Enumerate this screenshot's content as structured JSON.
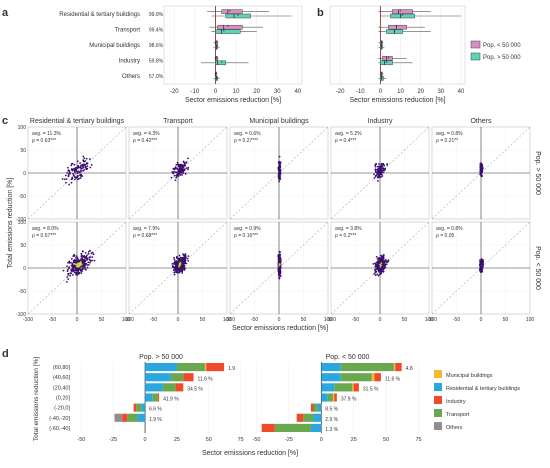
{
  "panel_letters": {
    "a": "a",
    "b": "b",
    "c": "c",
    "d": "d"
  },
  "colors": {
    "pop_lt": "#d58fc4",
    "pop_gt": "#5fd3b5",
    "sector_municipal": "#f6b82f",
    "sector_residential": "#2aa7df",
    "sector_industry": "#ef4b2a",
    "sector_transport": "#6aa84f",
    "sector_others": "#8f8f8f",
    "density_low": "#3b0f6f",
    "density_high": "#c9e021",
    "zero_line": "#8b1a1a"
  },
  "chart_data": [
    {
      "panel": "a",
      "type": "box",
      "categories": [
        "Residential & tertiary buildings",
        "Transport",
        "Municipal buildings",
        "Industry",
        "Others"
      ],
      "annotations": [
        "99.9%",
        "99.4%",
        "98.6%",
        "59.8%",
        "57.0%"
      ],
      "xlabel": "Sector emissions reduction [%]",
      "xlim": [
        -25,
        42
      ],
      "xticks": [
        -20,
        -10,
        0,
        10,
        20,
        30,
        40
      ],
      "series": [
        {
          "name": "Pop. < 50 000",
          "boxes": [
            {
              "wmin": -4,
              "q1": 3,
              "median": 6,
              "q3": 13,
              "wmax": 26,
              "mean": 7
            },
            {
              "wmin": -3,
              "q1": 1,
              "median": 4,
              "q3": 13,
              "wmax": 23,
              "mean": 6
            },
            {
              "wmin": -1,
              "q1": 0,
              "median": 0.2,
              "q3": 1,
              "wmax": 1.5,
              "mean": 0.5
            },
            {
              "wmin": -0.5,
              "q1": 0,
              "median": 0.2,
              "q3": 1,
              "wmax": 1.5,
              "mean": 0.5
            },
            {
              "wmin": -0.5,
              "q1": 0,
              "median": 0.1,
              "q3": 0.5,
              "wmax": 1,
              "mean": 0.3
            }
          ]
        },
        {
          "name": "Pop. > 50 000",
          "boxes": [
            {
              "wmin": -2,
              "q1": 5,
              "median": 9,
              "q3": 17,
              "wmax": 37,
              "mean": 11
            },
            {
              "wmin": -2,
              "q1": 0,
              "median": 3,
              "q3": 12,
              "wmax": 20,
              "mean": 4
            },
            {
              "wmin": -1,
              "q1": 0,
              "median": 0.4,
              "q3": 1,
              "wmax": 2,
              "mean": 0.6
            },
            {
              "wmin": -7,
              "q1": 0,
              "median": 1,
              "q3": 5,
              "wmax": 16,
              "mean": 3
            },
            {
              "wmin": -1,
              "q1": 0,
              "median": 0.4,
              "q3": 1,
              "wmax": 2,
              "mean": 0.8
            }
          ]
        }
      ]
    },
    {
      "panel": "b",
      "type": "box",
      "xlabel": "Sector emissions reduction [%]",
      "xlim": [
        -25,
        42
      ],
      "xticks": [
        -20,
        -10,
        0,
        10,
        20,
        30,
        40
      ],
      "legend": {
        "position": "right",
        "entries": [
          "Pop. < 50 000",
          "Pop. > 50 000"
        ]
      },
      "series": [
        {
          "name": "Pop. < 50 000",
          "boxes": [
            {
              "wmin": -1,
              "q1": 6,
              "median": 9,
              "q3": 16,
              "wmax": 25,
              "mean": 10
            },
            {
              "wmin": -1,
              "q1": 4,
              "median": 8,
              "q3": 13,
              "wmax": 22,
              "mean": 8
            },
            {
              "wmin": -1,
              "q1": 0,
              "median": 0.5,
              "q3": 1,
              "wmax": 1.5,
              "mean": 0.5
            },
            {
              "wmin": -1,
              "q1": 1,
              "median": 3,
              "q3": 6,
              "wmax": 13,
              "mean": 4
            },
            {
              "wmin": -0.5,
              "q1": 0,
              "median": 0.4,
              "q3": 1,
              "wmax": 1.5,
              "mean": 0.5
            }
          ]
        },
        {
          "name": "Pop. > 50 000",
          "boxes": [
            {
              "wmin": 0,
              "q1": 5,
              "median": 10,
              "q3": 17,
              "wmax": 40,
              "mean": 11
            },
            {
              "wmin": -1,
              "q1": 3,
              "median": 7,
              "q3": 11,
              "wmax": 25,
              "mean": 7
            },
            {
              "wmin": -1,
              "q1": 0,
              "median": 0.5,
              "q3": 1,
              "wmax": 2,
              "mean": 0.7
            },
            {
              "wmin": -1,
              "q1": 0,
              "median": 2,
              "q3": 6,
              "wmax": 16,
              "mean": 3
            },
            {
              "wmin": -1,
              "q1": 0,
              "median": 0.6,
              "q3": 1.5,
              "wmax": 3,
              "mean": 0.8
            }
          ]
        }
      ]
    },
    {
      "panel": "c",
      "type": "scatter",
      "columns": [
        "Residential & tertiary buildings",
        "Transport",
        "Municipal buildings",
        "Industry",
        "Others"
      ],
      "rows": [
        "Pop. > 50 000",
        "Pop. < 50 000"
      ],
      "xlabel": "Sector emissions reduction [%]",
      "ylabel": "Total emissions reduction [%]",
      "xlim": [
        -100,
        100
      ],
      "ylim": [
        -100,
        100
      ],
      "xticks": [
        -100,
        -50,
        0,
        50,
        100
      ],
      "yticks": [
        -100,
        -50,
        0,
        50,
        100
      ],
      "diagonal": "y = x (dashed)",
      "stats": [
        [
          {
            "avg": "avg. = 11.3%",
            "rho": "ρ = 0.63***"
          },
          {
            "avg": "avg. = 4.3%",
            "rho": "ρ = 0.42***"
          },
          {
            "avg": "avg. = 0.6%",
            "rho": "ρ = 0.27***"
          },
          {
            "avg": "avg. = 5.2%",
            "rho": "ρ = 0.4***"
          },
          {
            "avg": "avg. = 0.8%",
            "rho": "ρ = 0.21**"
          }
        ],
        [
          {
            "avg": "avg. = 8.0%",
            "rho": "ρ = 0.57***"
          },
          {
            "avg": "avg. = 7.9%",
            "rho": "ρ = 0.68***"
          },
          {
            "avg": "avg. = 0.9%",
            "rho": "ρ = 0.16***"
          },
          {
            "avg": "avg. = 3.8%",
            "rho": "ρ = 0.2***"
          },
          {
            "avg": "avg. = 0.8%",
            "rho": "ρ = 0.05"
          }
        ]
      ]
    },
    {
      "panel": "d",
      "type": "bar",
      "stacked": true,
      "orientation": "horizontal",
      "ylabel": "Total emissions reduction [%]",
      "xlabel": "Sector emissions reduction [%]",
      "categories": [
        "(60,80]",
        "(40,60]",
        "(20,40]",
        "(0,20]",
        "(-20,0]",
        "(-40,-20]",
        "(-60,-40]"
      ],
      "sectors": [
        "Municipal buildings",
        "Residential & tertiary buildings",
        "Industry",
        "Transport",
        "Others"
      ],
      "legend": {
        "position": "right",
        "entries": [
          "Municipal buildings",
          "Residential & tertiary buildings",
          "Industry",
          "Transport",
          "Others"
        ]
      },
      "facets": [
        {
          "name": "Pop. > 50 000",
          "xlim": [
            -55,
            80
          ],
          "xticks": [
            -50,
            -25,
            0,
            25,
            50,
            75
          ],
          "labels": [
            "1.9",
            "11.6 %",
            "34.5 %",
            "41.9 %",
            "6.6 %",
            "1.9 %",
            ""
          ],
          "bars": [
            {
              "Residential & tertiary buildings": 25,
              "Transport": 22,
              "Municipal buildings": 1,
              "Industry": 14,
              "Others": 0
            },
            {
              "Residential & tertiary buildings": 20,
              "Transport": 10,
              "Municipal buildings": 0,
              "Industry": 8,
              "Others": 0
            },
            {
              "Residential & tertiary buildings": 14,
              "Transport": 10,
              "Municipal buildings": 0,
              "Industry": 6,
              "Others": 0
            },
            {
              "Residential & tertiary buildings": 6,
              "Transport": 4,
              "Municipal buildings": 0,
              "Industry": 1,
              "Others": 0
            },
            {
              "Residential & tertiary buildings": -3,
              "Transport": -4,
              "Municipal buildings": 0,
              "Industry": -2,
              "Others": 0
            },
            {
              "Residential & tertiary buildings": -6,
              "Transport": -8,
              "Municipal buildings": 0,
              "Industry": -4,
              "Others": -6
            },
            {
              "Residential & tertiary buildings": 0,
              "Transport": 0,
              "Municipal buildings": 0,
              "Industry": 0,
              "Others": 0
            }
          ]
        },
        {
          "name": "Pop. < 50 000",
          "xlim": [
            -55,
            80
          ],
          "xticks": [
            -50,
            -25,
            0,
            25,
            50,
            75
          ],
          "labels": [
            "4.8",
            "11.6 %",
            "31.5 %",
            "37.9 %",
            "8.5 %",
            "2.9 %",
            "1.3 %"
          ],
          "bars": [
            {
              "Residential & tertiary buildings": 15,
              "Transport": 41,
              "Municipal buildings": 1,
              "Industry": 5,
              "Others": 0
            },
            {
              "Residential & tertiary buildings": 15,
              "Transport": 24,
              "Municipal buildings": 2,
              "Industry": 5,
              "Others": 0
            },
            {
              "Residential & tertiary buildings": 10,
              "Transport": 14,
              "Municipal buildings": 1,
              "Industry": 4,
              "Others": 0
            },
            {
              "Residential & tertiary buildings": 5,
              "Transport": 4,
              "Municipal buildings": 1,
              "Industry": 2,
              "Others": 0
            },
            {
              "Residential & tertiary buildings": -3,
              "Transport": -3,
              "Municipal buildings": 0,
              "Industry": -2,
              "Others": 0
            },
            {
              "Residential & tertiary buildings": -6,
              "Transport": -8,
              "Municipal buildings": 0,
              "Industry": -5,
              "Others": 0
            },
            {
              "Residential & tertiary buildings": -8,
              "Transport": -28,
              "Municipal buildings": 0,
              "Industry": -10,
              "Others": 0
            }
          ]
        }
      ]
    }
  ]
}
